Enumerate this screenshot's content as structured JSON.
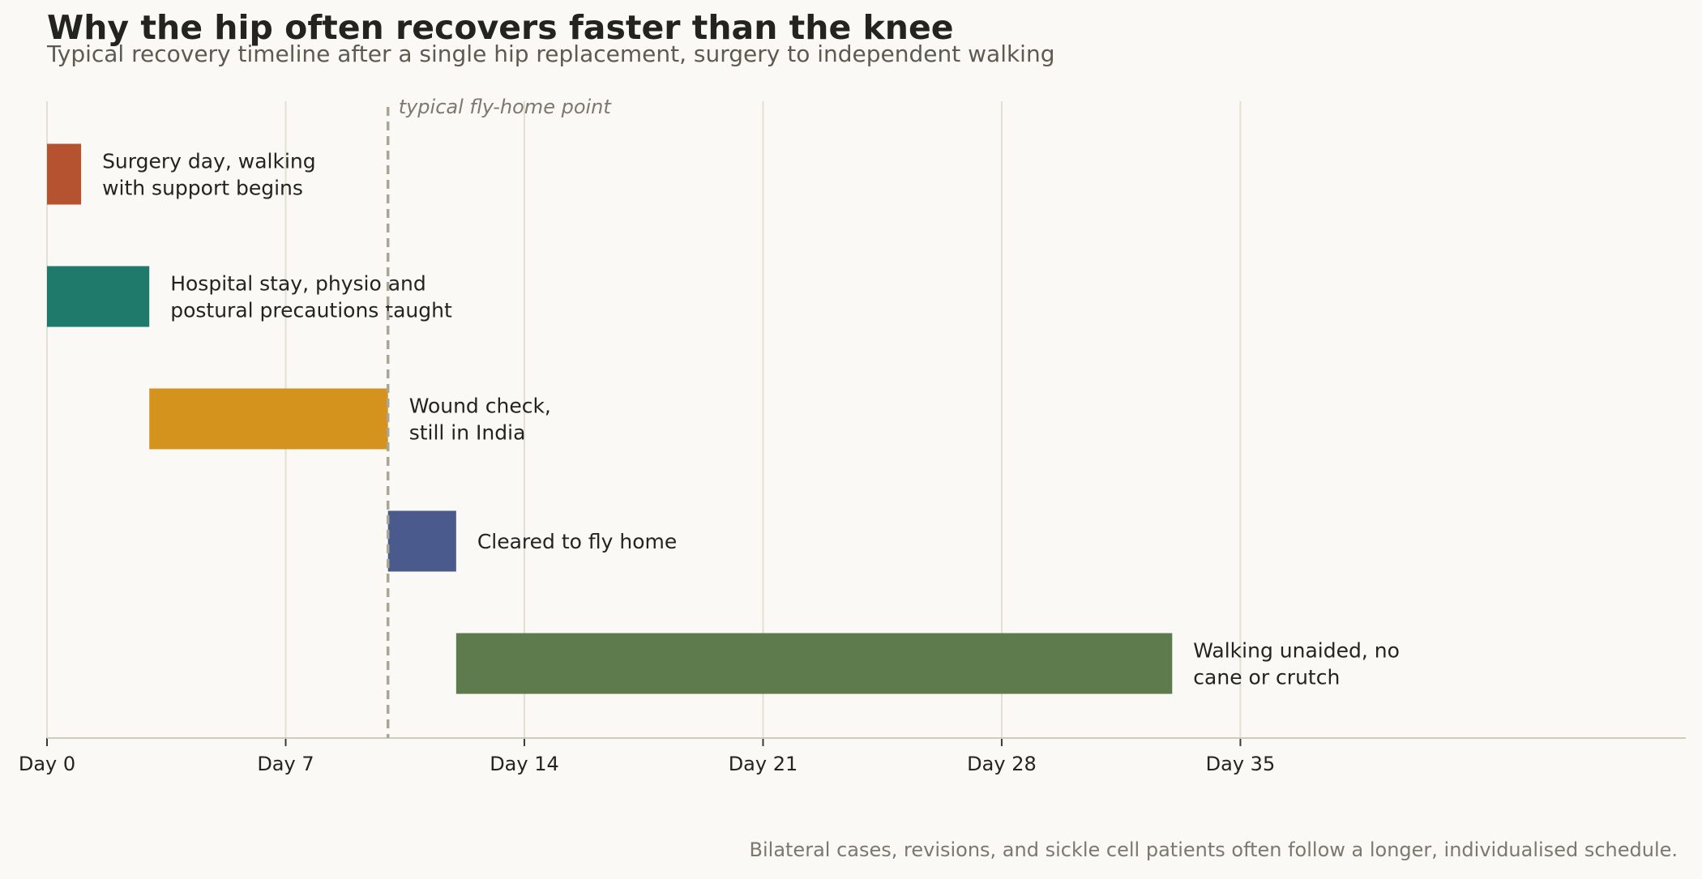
{
  "header": {
    "title": "Why the hip often recovers faster than the knee",
    "subtitle": "Typical recovery timeline after a single hip replacement, surgery to independent walking"
  },
  "footnote": "Bilateral cases, revisions, and sickle cell patients often follow a longer, individualised schedule.",
  "chart_data": {
    "type": "bar",
    "orientation": "horizontal",
    "title": "Why the hip often recovers faster than the knee",
    "subtitle": "Typical recovery timeline after a single hip replacement, surgery to independent walking",
    "xlabel": "",
    "ylabel": "",
    "xlim": [
      0,
      48
    ],
    "x_ticks": [
      0,
      7,
      14,
      21,
      28,
      35
    ],
    "x_tick_labels": [
      "Day 0",
      "Day 7",
      "Day 14",
      "Day 21",
      "Day 28",
      "Day 35"
    ],
    "grid": "vertical",
    "phases": [
      {
        "label": "Surgery day, walking\nwith support begins",
        "start": 0,
        "end": 1,
        "color": "#b5522f"
      },
      {
        "label": "Hospital stay, physio and\npostural precautions taught",
        "start": 0,
        "end": 3,
        "color": "#1f7a6c"
      },
      {
        "label": "Wound check,\nstill in India",
        "start": 3,
        "end": 10,
        "color": "#d4931d"
      },
      {
        "label": "Cleared to fly home",
        "start": 10,
        "end": 12,
        "color": "#4a5a8c"
      },
      {
        "label": "Walking unaided, no\ncane or crutch",
        "start": 12,
        "end": 33,
        "color": "#5d7b4d"
      }
    ],
    "reference_line": {
      "x": 10,
      "label": "typical fly-home point",
      "style": "dashed"
    }
  }
}
